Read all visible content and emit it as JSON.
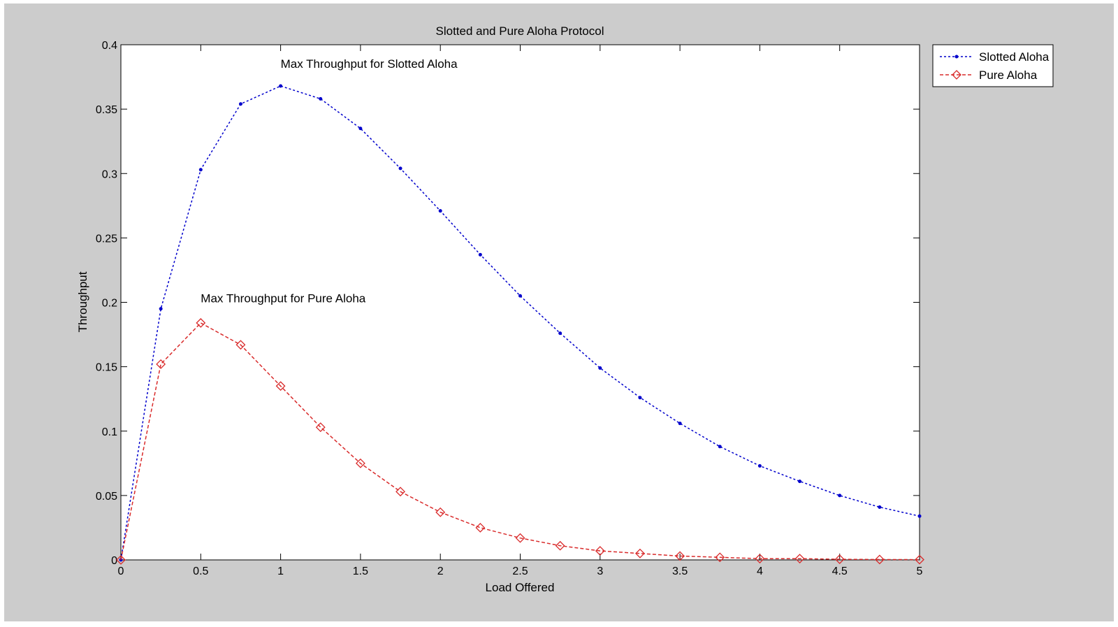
{
  "figure": {
    "background_color": "#cccccc",
    "axes_background_color": "#ffffff"
  },
  "chart_data": {
    "type": "line",
    "title": "Slotted and Pure Aloha Protocol",
    "xlabel": "Load Offered",
    "ylabel": "Throughput",
    "xlim": [
      0,
      5
    ],
    "ylim": [
      0,
      0.4
    ],
    "xticks": [
      "0",
      "0.5",
      "1",
      "1.5",
      "2",
      "2.5",
      "3",
      "3.5",
      "4",
      "4.5",
      "5"
    ],
    "yticks": [
      "0",
      "0.05",
      "0.1",
      "0.15",
      "0.2",
      "0.25",
      "0.3",
      "0.35",
      "0.4"
    ],
    "grid": false,
    "legend_position": "outside top-right",
    "x": [
      0,
      0.25,
      0.5,
      0.75,
      1,
      1.25,
      1.5,
      1.75,
      2,
      2.25,
      2.5,
      2.75,
      3,
      3.25,
      3.5,
      3.75,
      4,
      4.25,
      4.5,
      4.75,
      5
    ],
    "series": [
      {
        "name": "Slotted Aloha",
        "color": "#0000cc",
        "line_style": "dotted",
        "marker": "dot",
        "values": [
          0,
          0.195,
          0.303,
          0.354,
          0.368,
          0.358,
          0.335,
          0.304,
          0.271,
          0.237,
          0.205,
          0.176,
          0.149,
          0.126,
          0.106,
          0.088,
          0.073,
          0.061,
          0.05,
          0.041,
          0.034
        ]
      },
      {
        "name": "Pure Aloha",
        "color": "#d92b2b",
        "line_style": "dashed",
        "marker": "diamond",
        "values": [
          0,
          0.152,
          0.184,
          0.167,
          0.135,
          0.103,
          0.075,
          0.053,
          0.037,
          0.025,
          0.017,
          0.011,
          0.007,
          0.005,
          0.003,
          0.002,
          0.001,
          0.001,
          0.0005,
          0.0003,
          0.0002
        ]
      }
    ],
    "annotations": [
      {
        "text": "Max Throughput for Slotted Aloha",
        "x": 1,
        "y": 0.382
      },
      {
        "text": "Max Throughput for Pure Aloha",
        "x": 0.5,
        "y": 0.2
      }
    ]
  }
}
